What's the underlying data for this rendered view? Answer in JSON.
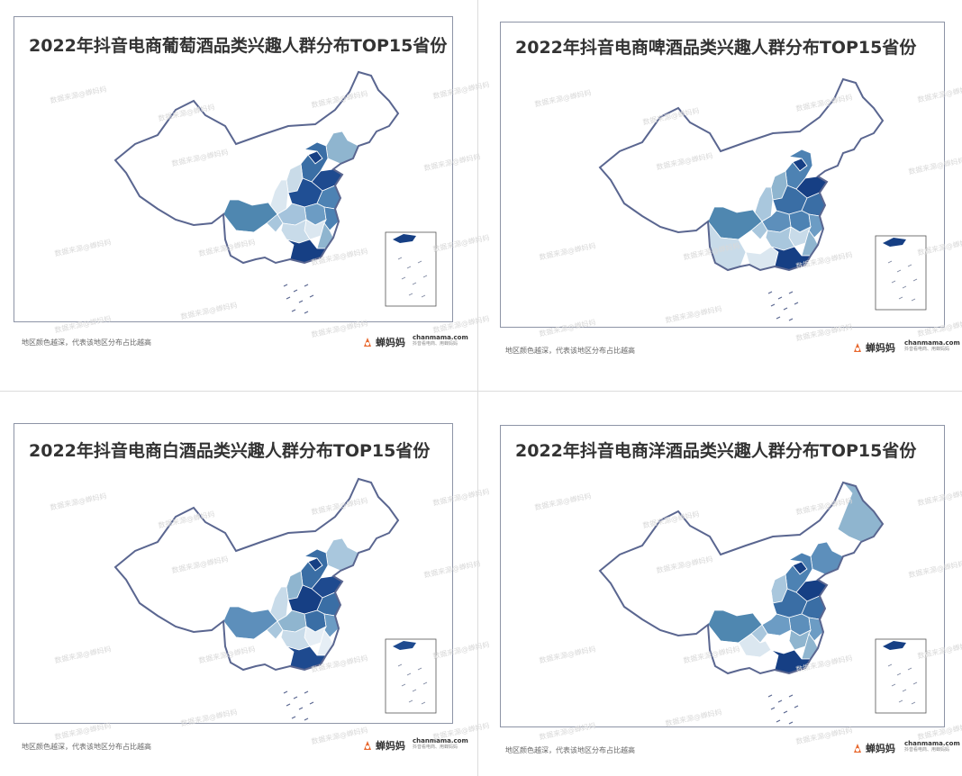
{
  "panels": [
    {
      "title": "2022年抖音电商葡萄酒品类兴趣人群分布TOP15省份",
      "fills": {
        "xinjiang": "#ffffff",
        "tibet": "#ffffff",
        "qinghai": "#ffffff",
        "gansu": "#ffffff",
        "neimenggu": "#ffffff",
        "heilongjiang": "#ffffff",
        "jilin": "#ffffff",
        "liaoning": "#8fb5cf",
        "hebei": "#3a6ea5",
        "beijing": "#163f84",
        "shanxi": "#c9dbe8",
        "shaanxi": "#dbe7f0",
        "ningxia": "#ffffff",
        "sichuan": "#4f87b0",
        "chongqing": "#a9c7dd",
        "henan": "#204f94",
        "shandong": "#1e4a8f",
        "jiangsu": "#4d82b3",
        "anhui": "#6c9cc4",
        "hubei": "#a4c3dc",
        "hunan": "#c8dbe9",
        "jiangxi": "#dbe7f0",
        "zhejiang": "#4d82b3",
        "fujian": "#8fb5cf",
        "guangdong": "#163f84",
        "guangxi": "#ffffff",
        "guizhou": "#ffffff",
        "yunnan": "#ffffff",
        "hainan": "#ffffff",
        "taiwan": "#ffffff"
      }
    },
    {
      "title": "2022年抖音电商啤酒品类兴趣人群分布TOP15省份",
      "fills": {
        "xinjiang": "#ffffff",
        "tibet": "#ffffff",
        "qinghai": "#ffffff",
        "gansu": "#ffffff",
        "neimenggu": "#ffffff",
        "heilongjiang": "#ffffff",
        "jilin": "#ffffff",
        "liaoning": "#ffffff",
        "hebei": "#4d82b3",
        "beijing": "#163f84",
        "shanxi": "#8fb5cf",
        "shaanxi": "#a9c7dd",
        "ningxia": "#ffffff",
        "sichuan": "#4f87b0",
        "chongqing": "#a9c7dd",
        "henan": "#3a6ea5",
        "shandong": "#163f84",
        "jiangsu": "#3a6ea5",
        "anhui": "#4d82b3",
        "hubei": "#5d8fbb",
        "hunan": "#a9c7dd",
        "jiangxi": "#c8dbe9",
        "zhejiang": "#6c9cc4",
        "fujian": "#8fb5cf",
        "guangdong": "#163f84",
        "guangxi": "#dbe7f0",
        "guizhou": "#ffffff",
        "yunnan": "#c8dbe9",
        "hainan": "#ffffff",
        "taiwan": "#ffffff"
      }
    },
    {
      "title": "2022年抖音电商白酒品类兴趣人群分布TOP15省份",
      "fills": {
        "xinjiang": "#ffffff",
        "tibet": "#ffffff",
        "qinghai": "#ffffff",
        "gansu": "#ffffff",
        "neimenggu": "#ffffff",
        "heilongjiang": "#ffffff",
        "jilin": "#ffffff",
        "liaoning": "#a9c7dd",
        "hebei": "#3a6ea5",
        "beijing": "#163f84",
        "shanxi": "#8fb5cf",
        "shaanxi": "#c8dbe9",
        "ningxia": "#ffffff",
        "sichuan": "#5d8fbb",
        "chongqing": "#a9c7dd",
        "henan": "#163f84",
        "shandong": "#1e4a8f",
        "jiangsu": "#3a6ea5",
        "anhui": "#3a6ea5",
        "hubei": "#8fb5cf",
        "hunan": "#c8dbe9",
        "jiangxi": "#e6eef5",
        "zhejiang": "#6c9cc4",
        "fujian": "#e6eef5",
        "guangdong": "#1e4a8f",
        "guangxi": "#ffffff",
        "guizhou": "#ffffff",
        "yunnan": "#ffffff",
        "hainan": "#ffffff",
        "taiwan": "#ffffff"
      }
    },
    {
      "title": "2022年抖音电商洋酒品类兴趣人群分布TOP15省份",
      "fills": {
        "xinjiang": "#ffffff",
        "tibet": "#ffffff",
        "qinghai": "#ffffff",
        "gansu": "#ffffff",
        "neimenggu": "#ffffff",
        "heilongjiang": "#8fb5cf",
        "jilin": "#ffffff",
        "liaoning": "#5d8fbb",
        "hebei": "#4d82b3",
        "beijing": "#163f84",
        "shanxi": "#a9c7dd",
        "shaanxi": "#ffffff",
        "ningxia": "#ffffff",
        "sichuan": "#4f87b0",
        "chongqing": "#a9c7dd",
        "henan": "#3a6ea5",
        "shandong": "#163f84",
        "jiangsu": "#3a6ea5",
        "anhui": "#5d8fbb",
        "hubei": "#6c9cc4",
        "hunan": "#ffffff",
        "jiangxi": "#8fb5cf",
        "zhejiang": "#6c9cc4",
        "fujian": "#8fb5cf",
        "guangdong": "#163f84",
        "guangxi": "#ffffff",
        "guizhou": "#dbe7f0",
        "yunnan": "#ffffff",
        "hainan": "#ffffff",
        "taiwan": "#ffffff"
      }
    }
  ],
  "footnote": "地区颜色越深，代表该地区分布占比越高",
  "brand_name": "蝉妈妈",
  "site_domain": "chanmama.com",
  "site_slogan": "抖音看电商、用蝉妈妈",
  "watermark": "数据来源@蝉妈妈",
  "colors": {
    "border": "#5a6690",
    "frame": "#8d94a6",
    "logo_orange": "#e8692f"
  }
}
